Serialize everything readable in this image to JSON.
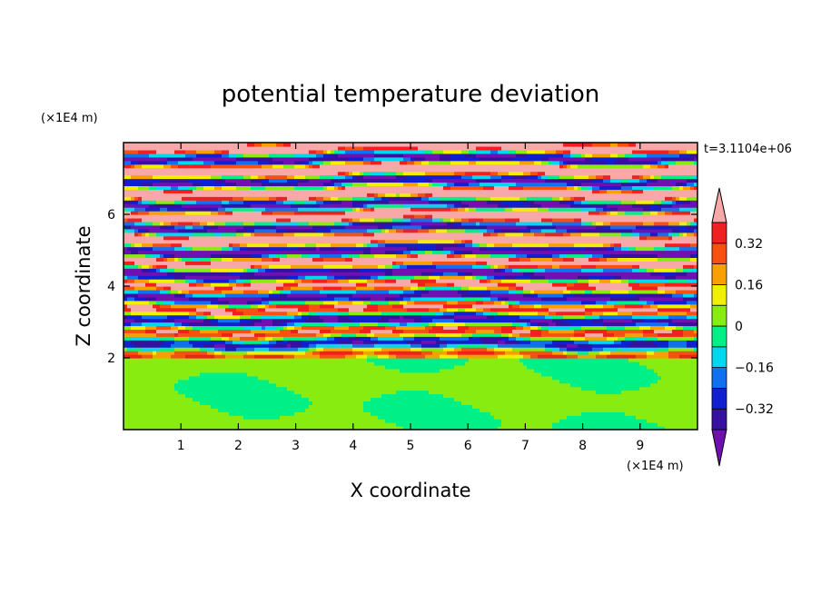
{
  "chart_data": {
    "type": "heatmap",
    "title": "potential temperature deviation",
    "xlabel": "X coordinate",
    "ylabel": "Z coordinate",
    "x_unit": "(×1E4 m)",
    "y_unit": "(×1E4 m)",
    "time_label": "t=3.1104e+06",
    "xlim": [
      0,
      10
    ],
    "ylim": [
      0,
      8
    ],
    "x_ticks": [
      "1",
      "2",
      "3",
      "4",
      "5",
      "6",
      "7",
      "8",
      "9"
    ],
    "y_ticks": [
      "2",
      "4",
      "6"
    ],
    "colorbar": {
      "levels": [
        -0.4,
        -0.32,
        -0.24,
        -0.16,
        -0.08,
        0,
        0.08,
        0.16,
        0.24,
        0.32,
        0.4
      ],
      "labels": [
        "0.32",
        "0.16",
        "0",
        "−0.16",
        "−0.32"
      ],
      "label_values": [
        0.32,
        0.16,
        0,
        -0.16,
        -0.32
      ],
      "colors": [
        "#7010b0",
        "#3810a0",
        "#1020d0",
        "#1070f0",
        "#00d8f0",
        "#00f088",
        "#88ec10",
        "#f0f000",
        "#f8a000",
        "#f85010",
        "#f02020",
        "#f8a8a8"
      ],
      "extend": "both"
    },
    "regions": {
      "lower_layer": {
        "z_range": [
          0,
          2
        ],
        "dominant_values": [
          0.0,
          0.08
        ],
        "description_colors": [
          "#00f088",
          "#88ec10"
        ]
      },
      "upper_layer": {
        "z_range": [
          2,
          8
        ],
        "pattern": "horizontal banding alternating high and low values"
      }
    }
  }
}
